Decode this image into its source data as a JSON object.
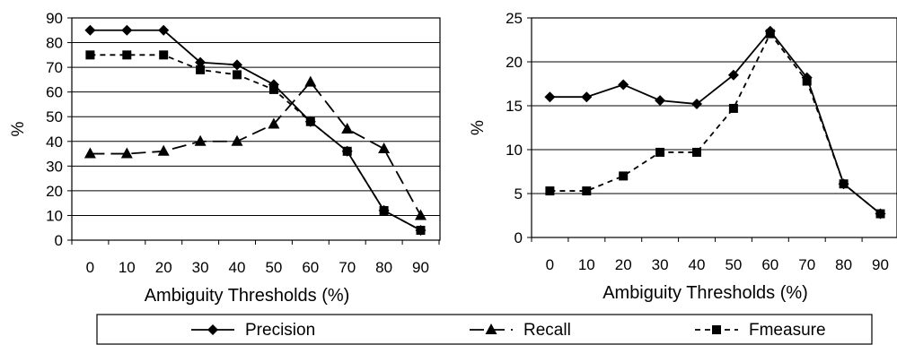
{
  "chart_data": [
    {
      "type": "line",
      "xlabel": "Ambiguity Thresholds (%)",
      "ylabel": "%",
      "x": [
        0,
        10,
        20,
        30,
        40,
        50,
        60,
        70,
        80,
        90
      ],
      "ylim": [
        0,
        90
      ],
      "yticks": [
        0,
        10,
        20,
        30,
        40,
        50,
        60,
        70,
        80,
        90
      ],
      "grid": true,
      "series": [
        {
          "name": "Precision",
          "marker": "diamond",
          "dash": "solid",
          "values": [
            85,
            85,
            85,
            72,
            71,
            63,
            48,
            36,
            12,
            4
          ]
        },
        {
          "name": "Recall",
          "marker": "triangle",
          "dash": "long-dash",
          "values": [
            35,
            35,
            36,
            40,
            40,
            47,
            64,
            45,
            37,
            10
          ]
        },
        {
          "name": "Fmeasure",
          "marker": "square",
          "dash": "dash",
          "values": [
            75,
            75,
            75,
            69,
            67,
            61,
            48,
            36,
            12,
            4
          ]
        }
      ]
    },
    {
      "type": "line",
      "xlabel": "Ambiguity Thresholds (%)",
      "ylabel": "%",
      "x": [
        0,
        10,
        20,
        30,
        40,
        50,
        60,
        70,
        80,
        90
      ],
      "ylim": [
        0,
        25
      ],
      "yticks": [
        0,
        5,
        10,
        15,
        20,
        25
      ],
      "grid": true,
      "series": [
        {
          "name": "Precision",
          "marker": "diamond",
          "dash": "solid",
          "values": [
            16,
            16,
            17.4,
            15.6,
            15.2,
            18.5,
            23.5,
            18.2,
            6.1,
            2.7
          ]
        },
        {
          "name": "Fmeasure",
          "marker": "square",
          "dash": "dash",
          "values": [
            5.3,
            5.3,
            7,
            9.7,
            9.7,
            14.7,
            23.2,
            17.8,
            6.1,
            2.7
          ]
        }
      ]
    }
  ],
  "legend": {
    "placement": "bottom",
    "entries": [
      {
        "label": "Precision",
        "marker": "diamond",
        "dash": "solid"
      },
      {
        "label": "Recall",
        "marker": "triangle",
        "dash": "long-dash"
      },
      {
        "label": "Fmeasure",
        "marker": "square",
        "dash": "dash"
      }
    ]
  }
}
